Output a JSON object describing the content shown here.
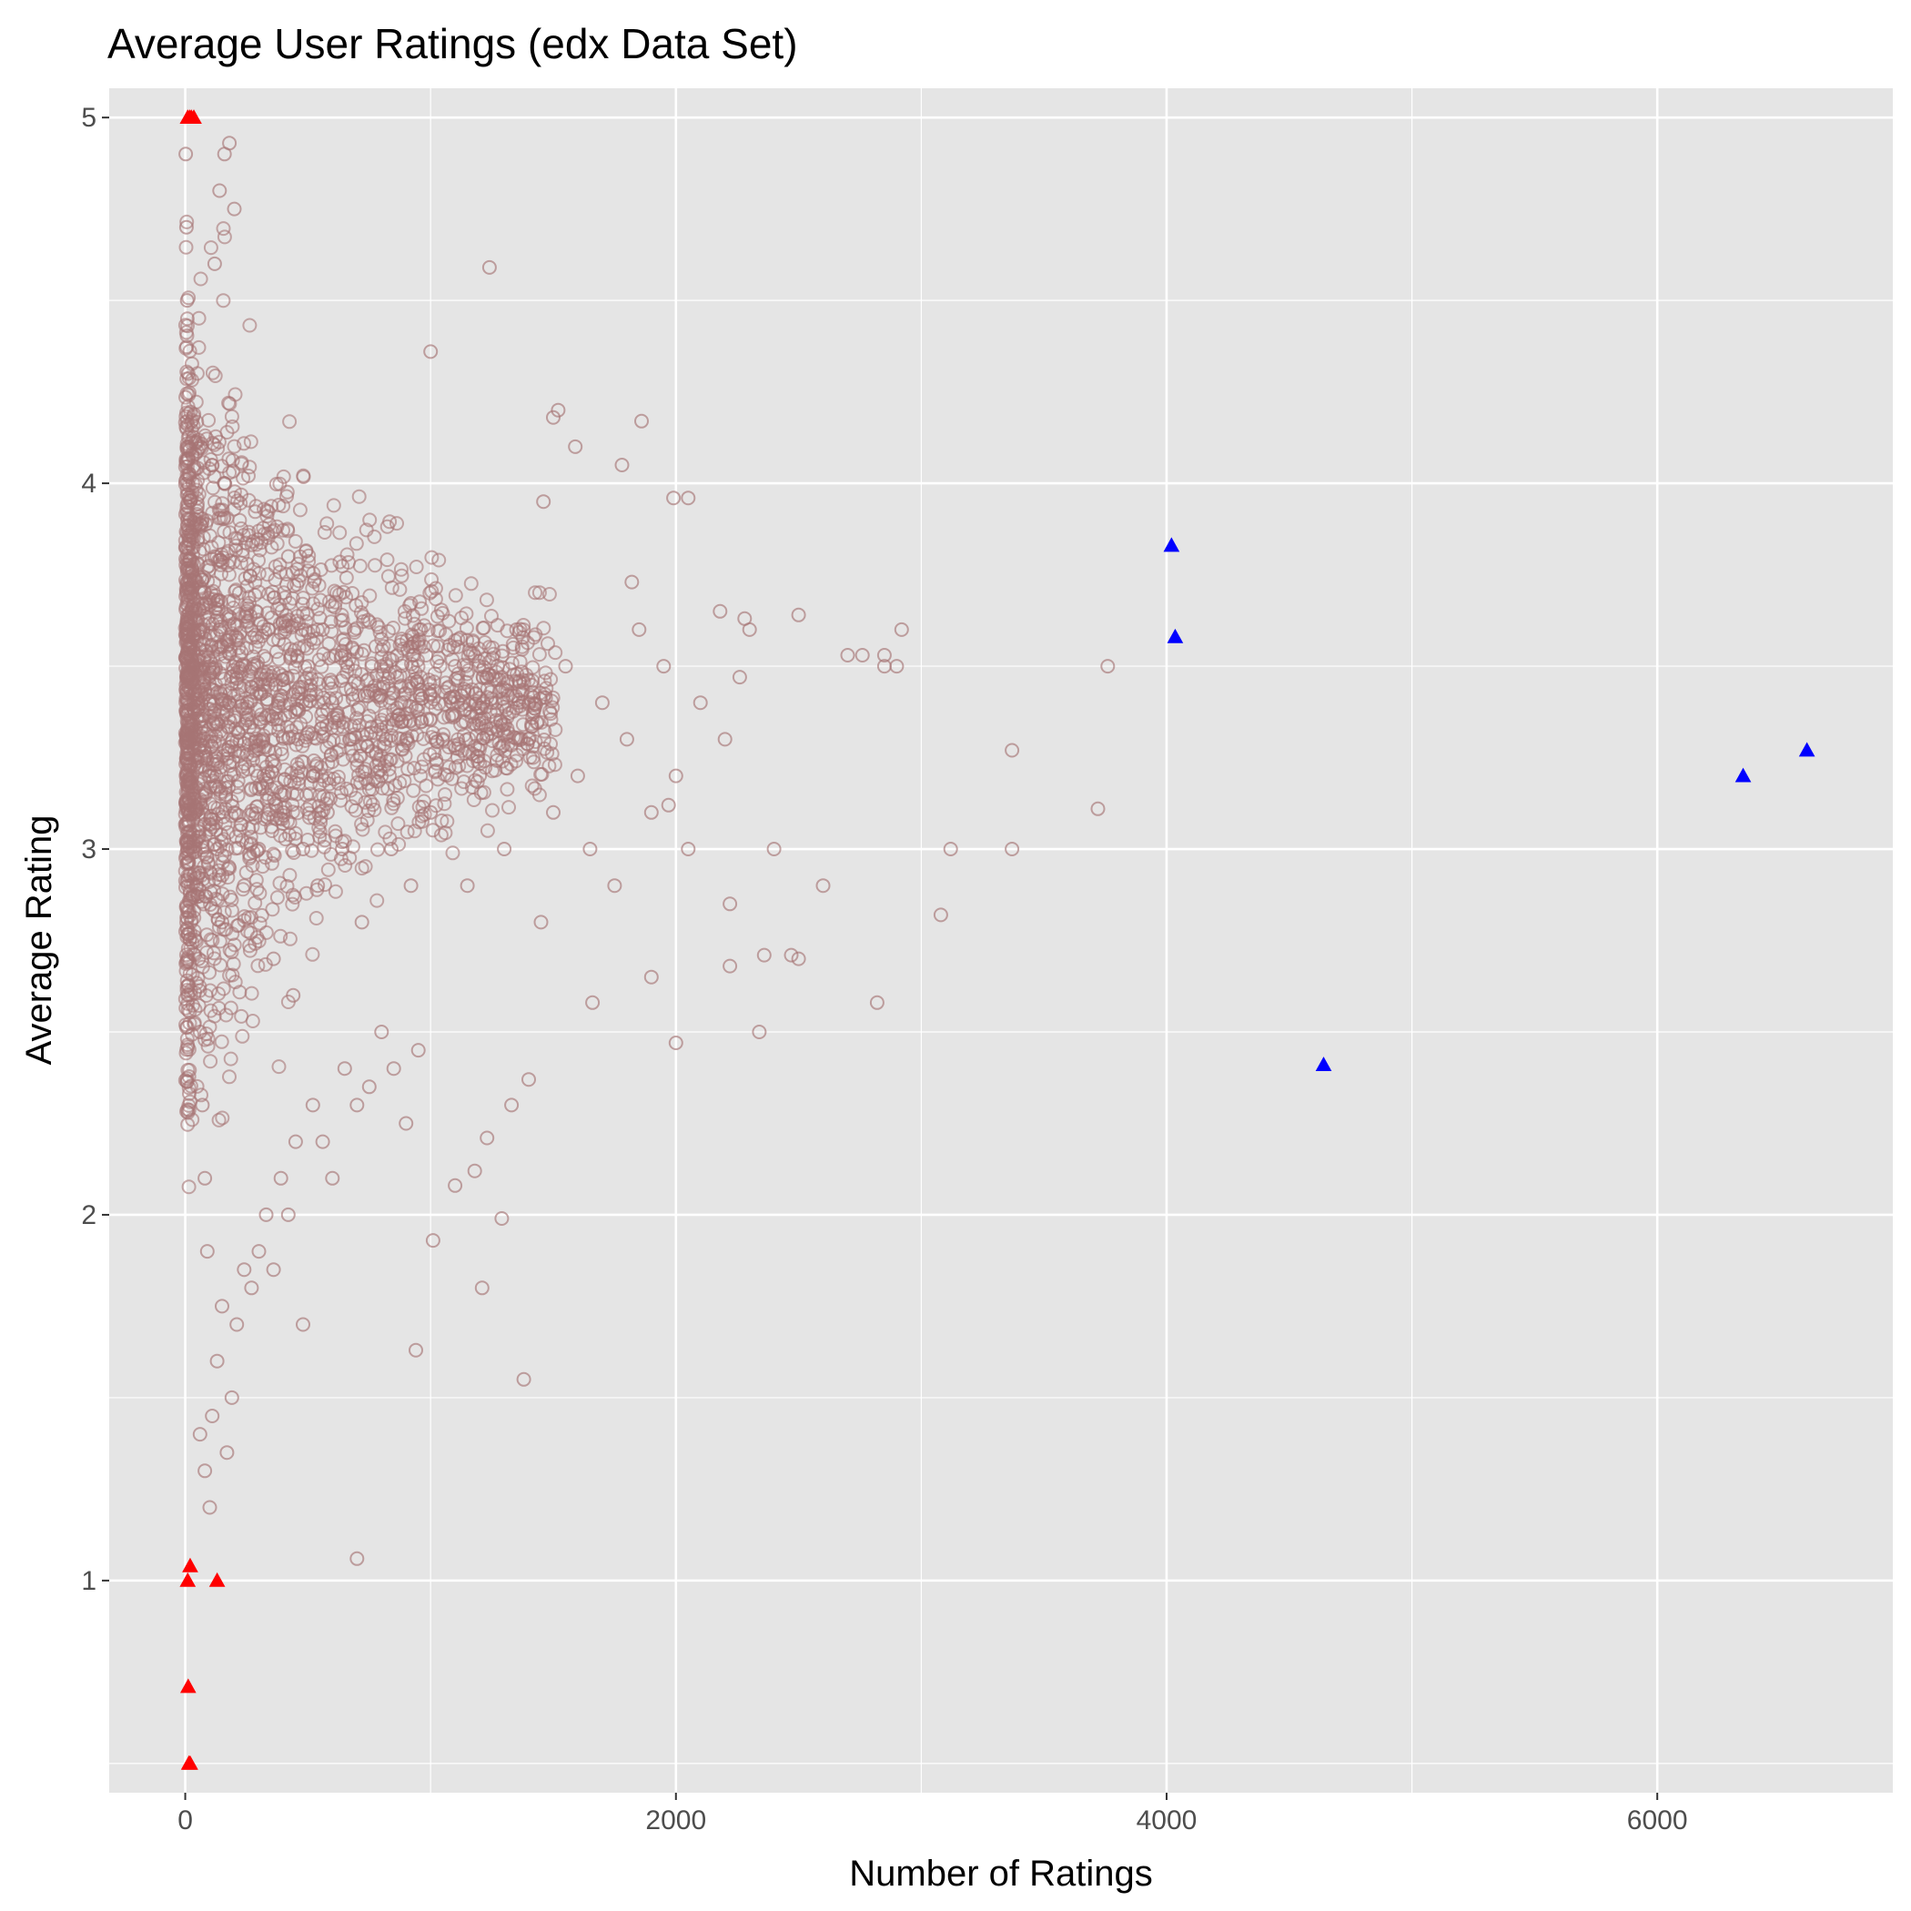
{
  "chart_data": {
    "type": "scatter",
    "title": "Average User Ratings (edx Data Set)",
    "xlabel": "Number of Ratings",
    "ylabel": "Average Rating",
    "xlim": [
      -310,
      6960
    ],
    "ylim": [
      0.42,
      5.08
    ],
    "x_ticks": [
      0,
      2000,
      4000,
      6000
    ],
    "x_tick_labels": [
      "0",
      "2000",
      "4000",
      "6000"
    ],
    "x_minor_ticks": [
      1000,
      3000,
      5000
    ],
    "y_ticks": [
      1,
      2,
      3,
      4,
      5
    ],
    "y_tick_labels": [
      "1",
      "2",
      "3",
      "4",
      "5"
    ],
    "y_minor_ticks": [
      0.5,
      1.5,
      2.5,
      3.5,
      4.5
    ],
    "grid": true,
    "legend": "none",
    "colors": {
      "panel": "#e5e5e5",
      "grid": "#ffffff",
      "points": "#a67474",
      "low_high_rating_users": "#ff0000",
      "most_active_users": "#0000ff"
    },
    "series": [
      {
        "marker": "open-circle",
        "color": "#a67474",
        "x": [
          2,
          5,
          8,
          12,
          15,
          20,
          25,
          30,
          35,
          40,
          45,
          55,
          60,
          70,
          80,
          90,
          100,
          110,
          120,
          130,
          140,
          150,
          160,
          180,
          200,
          220,
          240,
          260,
          280,
          300,
          320,
          340,
          360,
          380,
          400,
          420,
          440,
          460,
          480,
          500,
          520,
          540,
          560,
          580,
          600,
          640,
          680,
          720,
          760,
          800,
          840,
          880,
          920,
          960,
          1000,
          1050,
          1100,
          1150,
          1200,
          1250,
          1300,
          1350,
          1400,
          1450,
          1500,
          1550,
          1600,
          1650,
          1700,
          1750,
          1800,
          1850,
          1900,
          1950,
          2000,
          2050,
          2100,
          2200,
          2300,
          2400,
          2500,
          2600,
          2700,
          2850,
          2900,
          3080,
          3120,
          3370,
          3370,
          3720,
          3760,
          1240,
          1000,
          1380,
          700,
          1210,
          1010,
          1230,
          940,
          1860,
          2050,
          2220,
          2000,
          1990,
          2760,
          2820,
          2470,
          2340,
          1900,
          1660,
          1780,
          2220,
          2180,
          2260,
          2280,
          2360,
          2500,
          2850,
          2920,
          1820,
          1970,
          1590,
          1500,
          1460,
          1520,
          1400,
          1180,
          1100,
          1290,
          1330,
          120,
          140,
          160,
          180,
          200,
          60,
          80,
          100,
          110,
          130,
          150,
          170,
          190,
          210,
          240,
          270,
          300,
          330,
          360,
          390,
          420,
          450,
          480,
          520,
          560,
          600,
          650,
          700,
          750,
          800,
          850,
          900,
          950
        ],
        "y": [
          4.9,
          4.7,
          4.5,
          4.3,
          4.1,
          3.9,
          3.7,
          3.5,
          3.3,
          3.1,
          2.9,
          2.7,
          2.5,
          2.3,
          2.1,
          1.9,
          3.5,
          3.2,
          3.8,
          3.0,
          3.6,
          2.8,
          4.0,
          3.4,
          3.1,
          3.7,
          2.9,
          3.3,
          3.5,
          3.0,
          3.2,
          3.6,
          2.7,
          3.4,
          3.1,
          3.8,
          2.6,
          3.3,
          3.0,
          3.5,
          3.2,
          2.9,
          3.6,
          3.1,
          3.4,
          3.0,
          3.3,
          2.8,
          3.5,
          3.2,
          3.0,
          3.4,
          2.9,
          3.6,
          3.1,
          3.3,
          3.5,
          2.9,
          3.2,
          3.4,
          3.0,
          3.6,
          3.3,
          2.8,
          3.1,
          3.5,
          3.2,
          3.0,
          3.4,
          2.9,
          3.3,
          3.6,
          3.1,
          3.5,
          3.2,
          3.0,
          3.4,
          3.3,
          3.6,
          3.0,
          2.7,
          2.9,
          3.53,
          3.53,
          3.5,
          2.82,
          3.0,
          3.27,
          3.0,
          3.11,
          3.5,
          4.59,
          4.36,
          1.55,
          1.06,
          1.8,
          1.93,
          2.21,
          1.63,
          4.17,
          3.96,
          2.85,
          2.47,
          3.96,
          3.53,
          2.58,
          2.71,
          2.5,
          2.65,
          2.58,
          4.05,
          2.68,
          3.65,
          3.47,
          3.63,
          2.71,
          3.64,
          3.5,
          3.6,
          3.73,
          3.12,
          4.1,
          4.18,
          3.95,
          4.2,
          2.37,
          2.12,
          2.08,
          1.99,
          2.3,
          4.6,
          4.8,
          4.9,
          4.93,
          4.75,
          1.4,
          1.3,
          1.2,
          1.45,
          1.6,
          1.75,
          1.35,
          1.5,
          1.7,
          1.85,
          1.8,
          1.9,
          2.0,
          1.85,
          2.1,
          2.0,
          2.2,
          1.7,
          2.3,
          2.2,
          2.1,
          2.4,
          2.3,
          2.35,
          2.5,
          2.4,
          2.25,
          2.45
        ]
      },
      {
        "marker": "triangle",
        "color": "#ff0000",
        "x": [
          10,
          18,
          25,
          35,
          10,
          20,
          130,
          12,
          15,
          20
        ],
        "y": [
          5.0,
          5.0,
          5.0,
          5.0,
          1.0,
          1.04,
          1.0,
          0.71,
          0.5,
          0.5
        ]
      },
      {
        "marker": "triangle",
        "color": "#0000ff",
        "x": [
          4020,
          4035,
          4640,
          6350,
          6610
        ],
        "y": [
          3.83,
          3.58,
          2.41,
          3.2,
          3.27
        ]
      }
    ]
  }
}
